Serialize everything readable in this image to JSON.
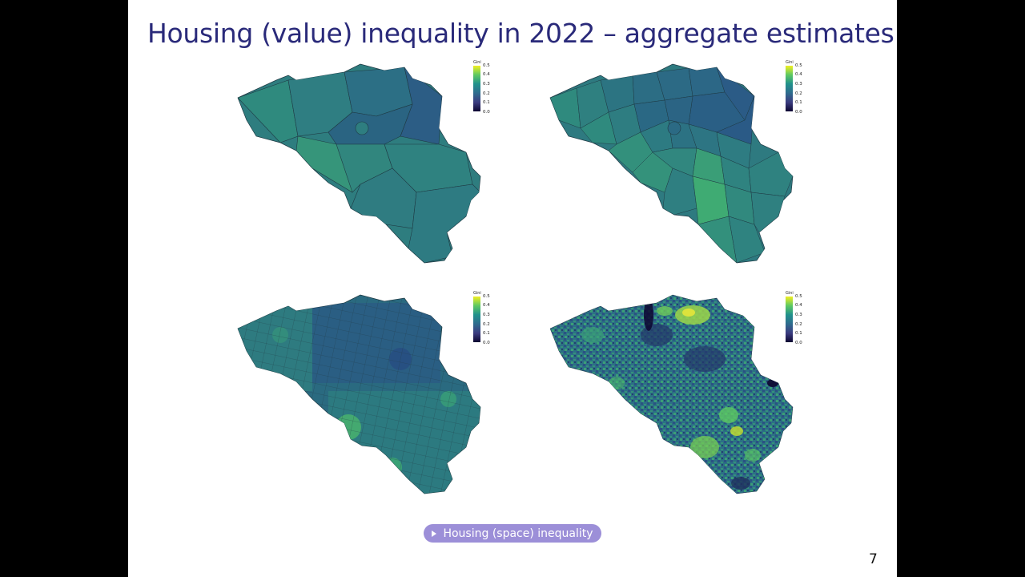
{
  "slide": {
    "title": "Housing (value) inequality in 2022 – aggregate estimates",
    "page_number": "7",
    "nav_button_label": "Housing (space) inequality"
  },
  "legend": {
    "title": "Gini",
    "ticks": [
      "0.5",
      "0.4",
      "0.3",
      "0.2",
      "0.1",
      "0.0"
    ]
  },
  "colors": {
    "slide_background": "#ffffff",
    "frame_background": "#000000",
    "title_color": "#2a2a7a",
    "button_background": "#9c8fd8",
    "viridis_low": "#0d0630",
    "viridis_mid": "#21918c",
    "viridis_high": "#f1ee21"
  },
  "maps": [
    {
      "id": "provinces",
      "base_fill": "#2e7d7f"
    },
    {
      "id": "districts",
      "base_fill": "#2e7a80"
    },
    {
      "id": "municipalities",
      "base_fill": "#2a6a80"
    },
    {
      "id": "statistical-sectors",
      "base_fill": "#2c6f85"
    }
  ]
}
